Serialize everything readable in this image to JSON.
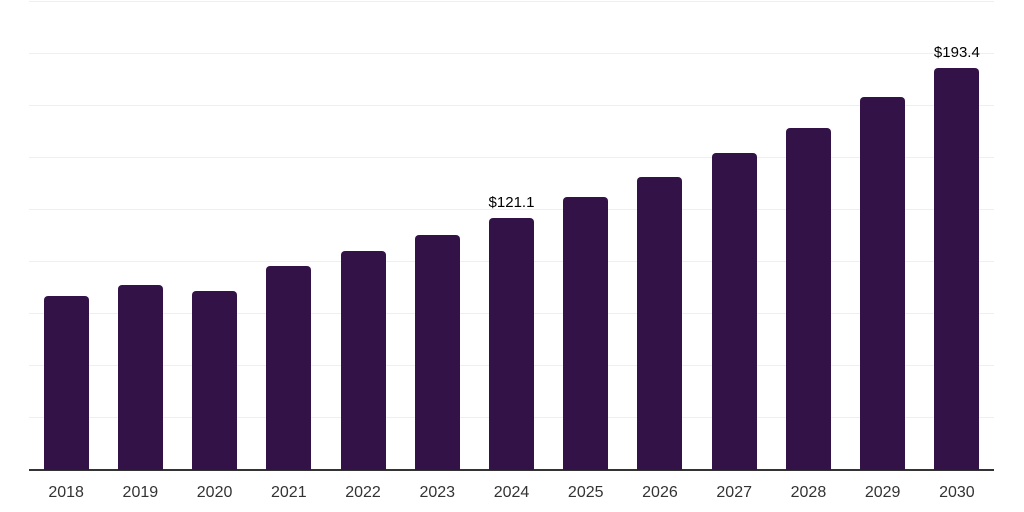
{
  "chart_data": {
    "type": "bar",
    "title": "",
    "xlabel": "",
    "ylabel": "",
    "categories": [
      "2018",
      "2019",
      "2020",
      "2021",
      "2022",
      "2023",
      "2024",
      "2025",
      "2026",
      "2027",
      "2028",
      "2029",
      "2030"
    ],
    "values": [
      83.7,
      88.9,
      86.1,
      98.1,
      105.3,
      113.0,
      121.1,
      131.3,
      141.1,
      152.4,
      164.6,
      179.3,
      193.4
    ],
    "data_labels": [
      {
        "category": "2024",
        "text": "$121.1"
      },
      {
        "category": "2030",
        "text": "$193.4"
      }
    ],
    "ylim": [
      0,
      225
    ],
    "grid_interval": 25,
    "grid": true,
    "legend": false,
    "y_axis_labels_visible": false,
    "colors": {
      "bar": "#331247",
      "gridline": "#efefef",
      "axis_line": "#333333",
      "tick_label": "#333333",
      "value_label": "#000000",
      "background": "#ffffff"
    }
  }
}
